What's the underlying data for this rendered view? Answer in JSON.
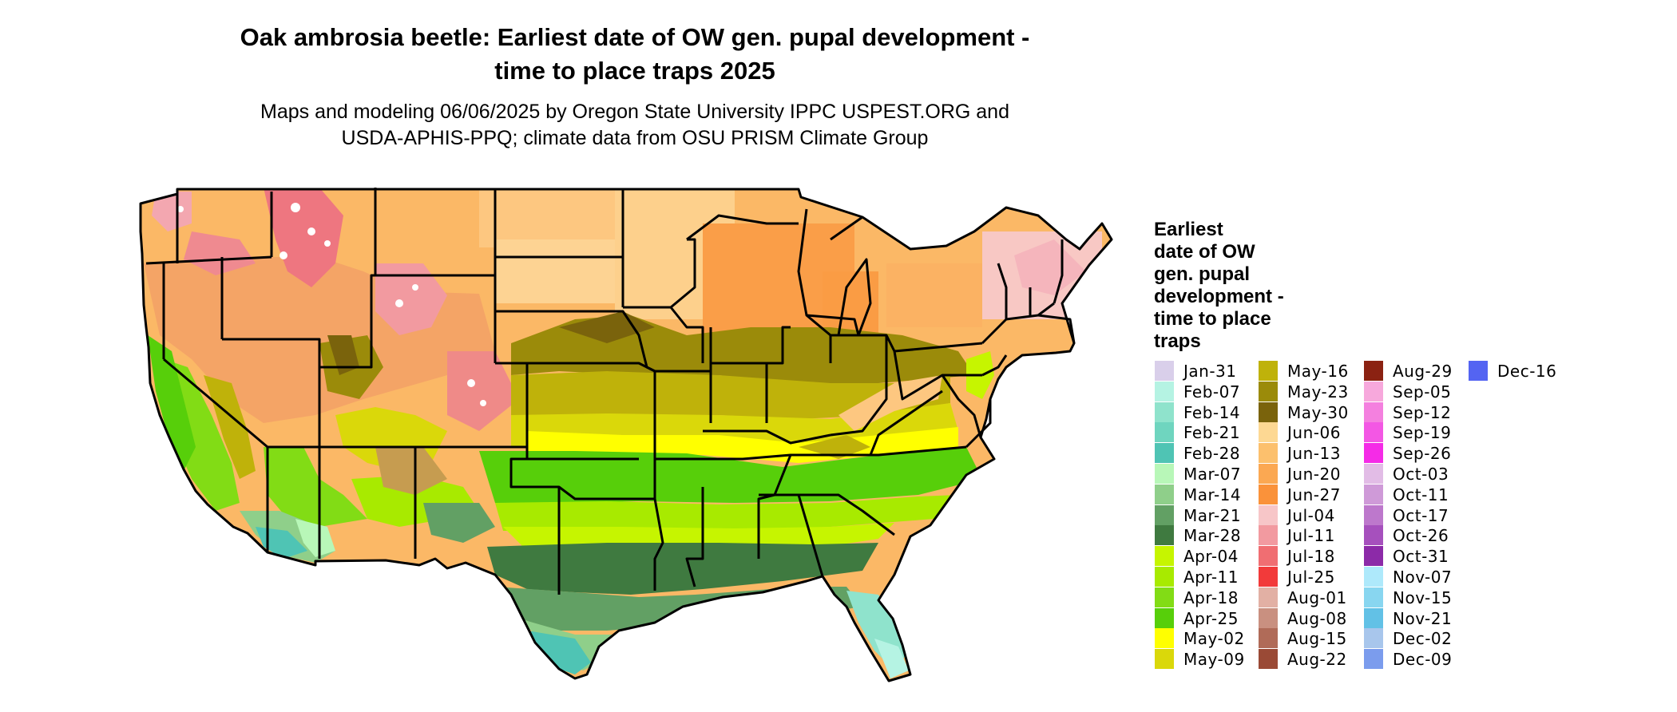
{
  "title_line1": "Oak ambrosia beetle: Earliest date of OW gen. pupal development -",
  "title_line2": "time to place traps 2025",
  "subtitle_line1": "Maps and modeling 06/06/2025 by Oregon State University IPPC USPEST.ORG and",
  "subtitle_line2": "USDA-APHIS-PPQ; climate data from OSU PRISM Climate Group",
  "legend": {
    "title_lines": [
      "Earliest",
      "date of OW",
      "gen. pupal",
      "development -",
      "time to place",
      "traps"
    ],
    "columns": [
      [
        {
          "label": "Jan-31",
          "color": "#d9cfea"
        },
        {
          "label": "Feb-07",
          "color": "#b5f3e3"
        },
        {
          "label": "Feb-14",
          "color": "#8fe3cc"
        },
        {
          "label": "Feb-21",
          "color": "#6fd5bf"
        },
        {
          "label": "Feb-28",
          "color": "#4fc4b4"
        },
        {
          "label": "Mar-07",
          "color": "#b8f7b8"
        },
        {
          "label": "Mar-14",
          "color": "#8fcf8a"
        },
        {
          "label": "Mar-21",
          "color": "#62a064"
        },
        {
          "label": "Mar-28",
          "color": "#3f7a40"
        },
        {
          "label": "Apr-04",
          "color": "#c6f500"
        },
        {
          "label": "Apr-11",
          "color": "#a8ea00"
        },
        {
          "label": "Apr-18",
          "color": "#82dc15"
        },
        {
          "label": "Apr-25",
          "color": "#57cf0a"
        },
        {
          "label": "May-02",
          "color": "#ffff00"
        },
        {
          "label": "May-09",
          "color": "#dad80a"
        }
      ],
      [
        {
          "label": "May-16",
          "color": "#bfb20a"
        },
        {
          "label": "May-23",
          "color": "#9b8b0a"
        },
        {
          "label": "May-30",
          "color": "#7a630c"
        },
        {
          "label": "Jun-06",
          "color": "#fdd893"
        },
        {
          "label": "Jun-13",
          "color": "#fcc06d"
        },
        {
          "label": "Jun-20",
          "color": "#fba852"
        },
        {
          "label": "Jun-27",
          "color": "#fa923a"
        },
        {
          "label": "Jul-04",
          "color": "#f7c6c8"
        },
        {
          "label": "Jul-11",
          "color": "#f29aa0"
        },
        {
          "label": "Jul-18",
          "color": "#f06e72"
        },
        {
          "label": "Jul-25",
          "color": "#f23a3a"
        },
        {
          "label": "Aug-01",
          "color": "#e2b0a4"
        },
        {
          "label": "Aug-08",
          "color": "#c99080"
        },
        {
          "label": "Aug-15",
          "color": "#b06b58"
        },
        {
          "label": "Aug-22",
          "color": "#9a4a36"
        }
      ],
      [
        {
          "label": "Aug-29",
          "color": "#8b2212"
        },
        {
          "label": "Sep-05",
          "color": "#f7a8dc"
        },
        {
          "label": "Sep-12",
          "color": "#f480df"
        },
        {
          "label": "Sep-19",
          "color": "#f357e4"
        },
        {
          "label": "Sep-26",
          "color": "#f52be7"
        },
        {
          "label": "Oct-03",
          "color": "#e2bce6"
        },
        {
          "label": "Oct-11",
          "color": "#cf9ad8"
        },
        {
          "label": "Oct-17",
          "color": "#bd78cc"
        },
        {
          "label": "Oct-26",
          "color": "#a650bd"
        },
        {
          "label": "Oct-31",
          "color": "#8c2aa8"
        },
        {
          "label": "Nov-07",
          "color": "#aee9fb"
        },
        {
          "label": "Nov-15",
          "color": "#88d6f0"
        },
        {
          "label": "Nov-21",
          "color": "#62c1e6"
        },
        {
          "label": "Dec-02",
          "color": "#a8c6ec"
        },
        {
          "label": "Dec-09",
          "color": "#7b9ced"
        }
      ],
      [
        {
          "label": "Dec-16",
          "color": "#5464f2"
        }
      ]
    ]
  }
}
